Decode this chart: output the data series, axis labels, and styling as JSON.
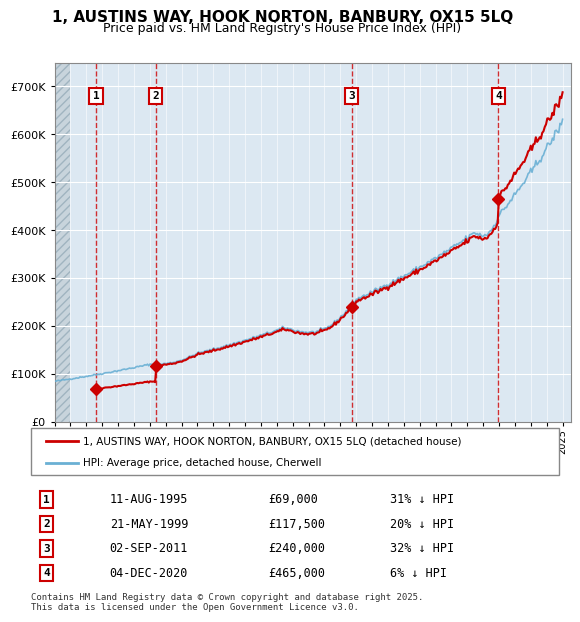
{
  "title_line1": "1, AUSTINS WAY, HOOK NORTON, BANBURY, OX15 5LQ",
  "title_line2": "Price paid vs. HM Land Registry's House Price Index (HPI)",
  "sale_dates": [
    "1995-08-11",
    "1999-05-21",
    "2011-09-02",
    "2020-12-04"
  ],
  "sale_prices": [
    69000,
    117500,
    240000,
    465000
  ],
  "sale_labels": [
    "1",
    "2",
    "3",
    "4"
  ],
  "sale_info": [
    {
      "label": "1",
      "date": "11-AUG-1995",
      "price": "£69,000",
      "pct": "31% ↓ HPI"
    },
    {
      "label": "2",
      "date": "21-MAY-1999",
      "price": "£117,500",
      "pct": "20% ↓ HPI"
    },
    {
      "label": "3",
      "date": "02-SEP-2011",
      "price": "£240,000",
      "pct": "32% ↓ HPI"
    },
    {
      "label": "4",
      "date": "04-DEC-2020",
      "price": "£465,000",
      "pct": "6% ↓ HPI"
    }
  ],
  "hpi_color": "#6ab0d4",
  "sale_color": "#cc0000",
  "hatch_color": "#c8d8e8",
  "legend_label_sale": "1, AUSTINS WAY, HOOK NORTON, BANBURY, OX15 5LQ (detached house)",
  "legend_label_hpi": "HPI: Average price, detached house, Cherwell",
  "footer": "Contains HM Land Registry data © Crown copyright and database right 2025.\nThis data is licensed under the Open Government Licence v3.0.",
  "ylim": [
    0,
    750000
  ],
  "yticks": [
    0,
    100000,
    200000,
    300000,
    400000,
    500000,
    600000,
    700000
  ],
  "ytick_labels": [
    "£0",
    "£100K",
    "£200K",
    "£300K",
    "£400K",
    "£500K",
    "£600K",
    "£700K"
  ]
}
